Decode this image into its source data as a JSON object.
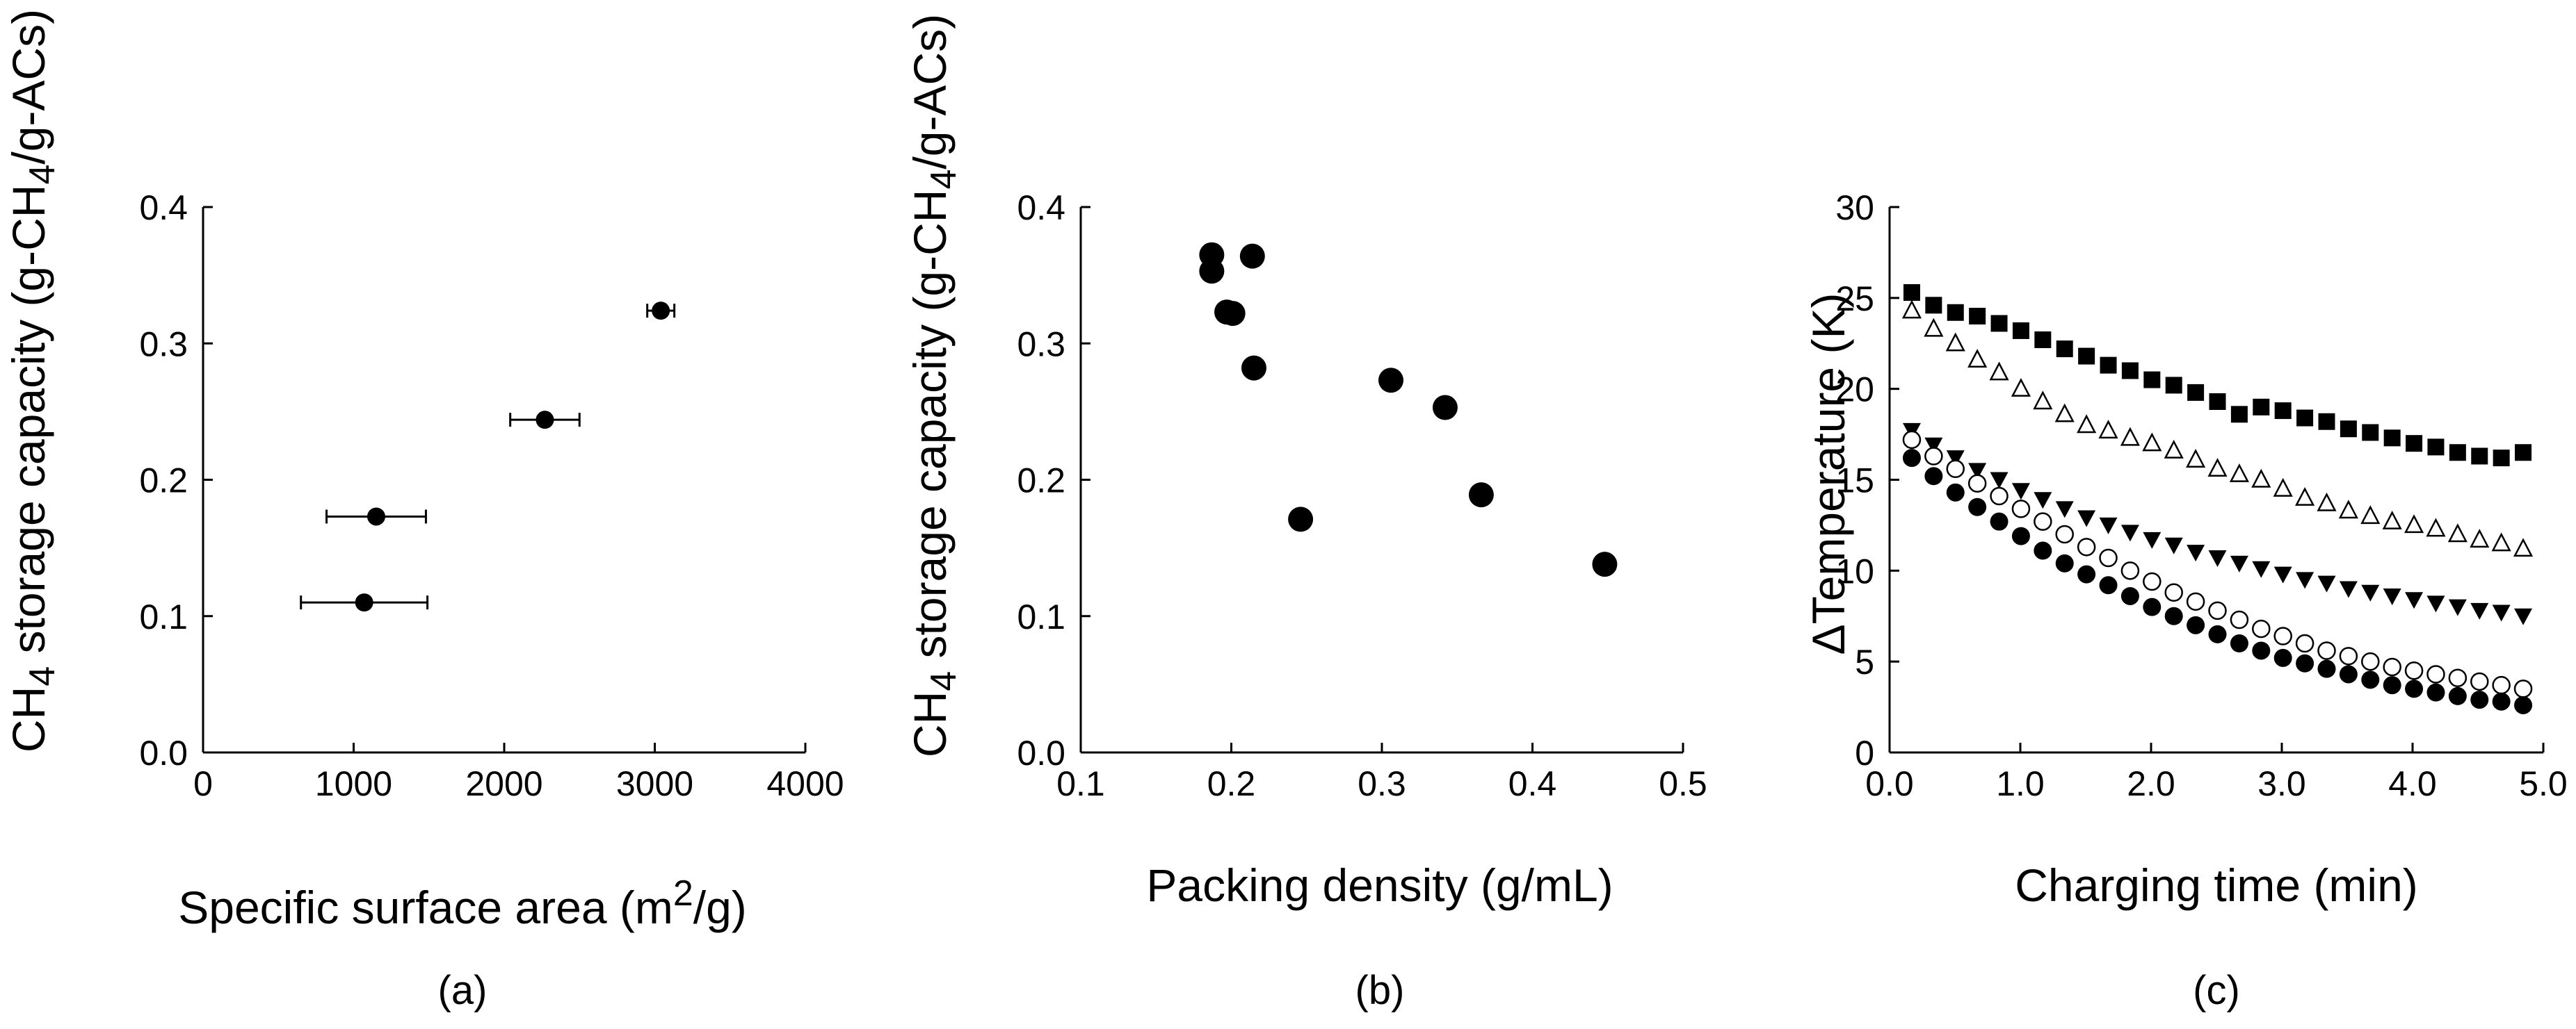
{
  "figure": {
    "background": "#ffffff",
    "ink": "#000000"
  },
  "chart_data": [
    {
      "panel": "a",
      "caption": "(a)",
      "type": "scatter",
      "xlabel_main": "Specific surface area (m",
      "xlabel_sup": "2",
      "xlabel_tail": "/g)",
      "ylabel_pre": "CH",
      "ylabel_sub": "4",
      "ylabel_mid": " storage capacity (g-CH",
      "ylabel_sub2": "4",
      "ylabel_tail": "/g-ACs)",
      "xlim": [
        0,
        4000
      ],
      "ylim": [
        0,
        0.4
      ],
      "xticks": [
        0,
        1000,
        2000,
        3000,
        4000
      ],
      "xtick_labels": [
        "0",
        "1000",
        "2000",
        "3000",
        "4000"
      ],
      "yticks": [
        0,
        0.1,
        0.2,
        0.3,
        0.4
      ],
      "ytick_labels": [
        "0.0",
        "0.1",
        "0.2",
        "0.3",
        "0.4"
      ],
      "points": [
        {
          "x": 1070,
          "y": 0.11,
          "xerr": 420
        },
        {
          "x": 1150,
          "y": 0.173,
          "xerr": 330
        },
        {
          "x": 2270,
          "y": 0.244,
          "xerr": 230
        },
        {
          "x": 3040,
          "y": 0.324,
          "xerr": 90
        }
      ]
    },
    {
      "panel": "b",
      "caption": "(b)",
      "type": "scatter",
      "xlabel": "Packing density (g/mL)",
      "ylabel_pre": "CH",
      "ylabel_sub": "4",
      "ylabel_mid": " storage capacity (g-CH",
      "ylabel_sub2": "4",
      "ylabel_tail": "/g-ACs)",
      "xlim": [
        0.1,
        0.5
      ],
      "ylim": [
        0,
        0.4
      ],
      "xticks": [
        0.1,
        0.2,
        0.3,
        0.4,
        0.5
      ],
      "xtick_labels": [
        "0.1",
        "0.2",
        "0.3",
        "0.4",
        "0.5"
      ],
      "yticks": [
        0,
        0.1,
        0.2,
        0.3,
        0.4
      ],
      "ytick_labels": [
        "0.0",
        "0.1",
        "0.2",
        "0.3",
        "0.4"
      ],
      "points": [
        {
          "x": 0.187,
          "y": 0.365
        },
        {
          "x": 0.187,
          "y": 0.353
        },
        {
          "x": 0.214,
          "y": 0.364
        },
        {
          "x": 0.197,
          "y": 0.323
        },
        {
          "x": 0.201,
          "y": 0.322
        },
        {
          "x": 0.215,
          "y": 0.282
        },
        {
          "x": 0.246,
          "y": 0.171
        },
        {
          "x": 0.306,
          "y": 0.273
        },
        {
          "x": 0.342,
          "y": 0.253
        },
        {
          "x": 0.366,
          "y": 0.189
        },
        {
          "x": 0.448,
          "y": 0.138
        }
      ]
    },
    {
      "panel": "c",
      "caption": "(c)",
      "type": "scatter",
      "xlabel": "Charging time (min)",
      "ylabel": "ΔTemperature (K)",
      "xlim": [
        0,
        5
      ],
      "ylim": [
        0,
        30
      ],
      "xticks": [
        0,
        1,
        2,
        3,
        4,
        5
      ],
      "xtick_labels": [
        "0.0",
        "1.0",
        "2.0",
        "3.0",
        "4.0",
        "5.0"
      ],
      "yticks": [
        0,
        5,
        10,
        15,
        20,
        25,
        30
      ],
      "ytick_labels": [
        "0",
        "5",
        "10",
        "15",
        "20",
        "25",
        "30"
      ],
      "x_start": 0.17,
      "x_step": 0.167,
      "series": [
        {
          "name": "filled-square",
          "marker": "square-filled",
          "values": [
            25.3,
            24.6,
            24.2,
            24.0,
            23.6,
            23.2,
            22.7,
            22.2,
            21.8,
            21.3,
            21.0,
            20.5,
            20.2,
            19.8,
            19.3,
            18.6,
            19.0,
            18.8,
            18.4,
            18.2,
            17.8,
            17.6,
            17.3,
            17.0,
            16.8,
            16.5,
            16.3,
            16.2,
            16.5
          ]
        },
        {
          "name": "open-triangle",
          "marker": "triangle-up-open",
          "values": [
            24.3,
            23.3,
            22.5,
            21.6,
            20.9,
            20.0,
            19.3,
            18.6,
            18.0,
            17.7,
            17.3,
            17.0,
            16.6,
            16.1,
            15.6,
            15.3,
            15.0,
            14.5,
            14.0,
            13.7,
            13.3,
            13.0,
            12.7,
            12.5,
            12.3,
            12.0,
            11.7,
            11.5,
            11.2
          ]
        },
        {
          "name": "filled-triangle-down",
          "marker": "triangle-down-filled",
          "values": [
            17.7,
            16.9,
            16.2,
            15.5,
            15.0,
            14.4,
            13.9,
            13.4,
            12.9,
            12.5,
            12.1,
            11.7,
            11.4,
            11.0,
            10.7,
            10.4,
            10.1,
            9.8,
            9.5,
            9.3,
            9.0,
            8.8,
            8.6,
            8.4,
            8.2,
            8.0,
            7.8,
            7.7,
            7.5
          ]
        },
        {
          "name": "open-circle",
          "marker": "circle-open",
          "values": [
            17.2,
            16.3,
            15.6,
            14.8,
            14.1,
            13.4,
            12.7,
            12.0,
            11.3,
            10.7,
            10.0,
            9.4,
            8.8,
            8.3,
            7.8,
            7.3,
            6.8,
            6.4,
            6.0,
            5.6,
            5.3,
            5.0,
            4.7,
            4.5,
            4.3,
            4.1,
            3.9,
            3.7,
            3.5
          ]
        },
        {
          "name": "filled-circle",
          "marker": "circle-filled",
          "values": [
            16.2,
            15.2,
            14.3,
            13.5,
            12.7,
            11.9,
            11.1,
            10.4,
            9.8,
            9.2,
            8.6,
            8.0,
            7.5,
            7.0,
            6.5,
            6.0,
            5.6,
            5.2,
            4.9,
            4.6,
            4.3,
            4.0,
            3.7,
            3.5,
            3.3,
            3.1,
            2.9,
            2.8,
            2.6
          ]
        }
      ]
    }
  ]
}
